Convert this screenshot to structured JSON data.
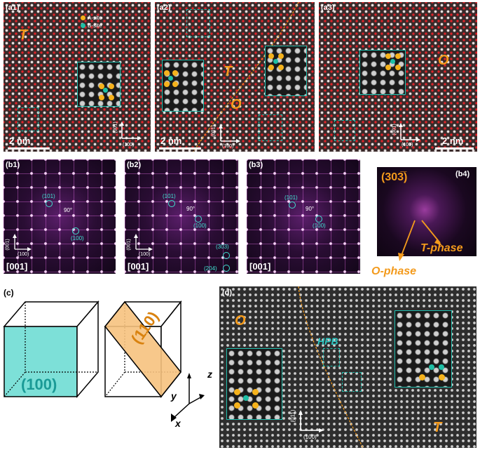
{
  "panels": {
    "a1": {
      "label": "(a1)",
      "phase": "T",
      "scalebar": "2 nm",
      "ax_v": "(001)",
      "ax_h": "(100)",
      "legend": {
        "a_site": "A-site",
        "b_site": "B-site"
      }
    },
    "a2": {
      "label": "(a2)",
      "phase_t": "T",
      "phase_o": "O",
      "scalebar": "2 nm",
      "ax_v": "(001)",
      "ax_h": "(100)"
    },
    "a3": {
      "label": "(a3)",
      "phase": "O",
      "scalebar": "2 nm",
      "ax_v": "(001)",
      "ax_h": "(100)"
    },
    "b1": {
      "label": "(b1)",
      "zone": "[001]",
      "spot1": "(101)",
      "spot2": "(100)",
      "angle": "90°",
      "ax_v": "(001)",
      "ax_h": "(100)"
    },
    "b2": {
      "label": "(b2)",
      "zone": "[001]",
      "spot1": "(101)",
      "spot2": "(100)",
      "spot3": "(303)",
      "spot4": "(204)",
      "angle": "90°",
      "ax_v": "(001)",
      "ax_h": "(100)"
    },
    "b3": {
      "label": "(b3)",
      "zone": "[001]",
      "spot1": "(101)",
      "spot2": "(100)",
      "angle": "90°"
    },
    "b4": {
      "label": "(b4)",
      "spot": "(303̅)",
      "t_phase": "T-phase",
      "o_phase": "O-phase"
    },
    "c": {
      "label": "(c)",
      "face1": "(100)",
      "face2": "(110)",
      "ax_x": "x",
      "ax_y": "y",
      "ax_z": "z"
    },
    "d": {
      "label": "(d)",
      "phase_o": "O",
      "phase_t": "T",
      "hpb": "HPB",
      "ax_v": "(011)",
      "ax_h": "(100)"
    }
  },
  "colors": {
    "a_site": "#f5b21c",
    "b_site": "#1fbfa5",
    "accent": "#f39a1c",
    "teal": "#2cc6c0",
    "cube_face": "#7de0d8",
    "plane_face": "#f6c27e"
  }
}
